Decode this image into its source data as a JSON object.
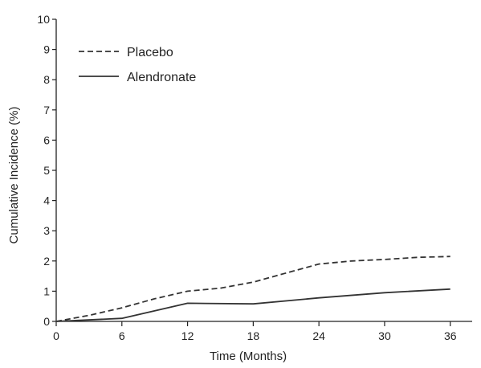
{
  "chart_data": {
    "type": "line",
    "title": "",
    "xlabel": "Time (Months)",
    "ylabel": "Cumulative Incidence (%)",
    "xlim": [
      0,
      38
    ],
    "ylim": [
      0,
      10
    ],
    "xticks": [
      0,
      6,
      12,
      18,
      24,
      30,
      36
    ],
    "yticks": [
      0,
      1,
      2,
      3,
      4,
      5,
      6,
      7,
      8,
      9,
      10
    ],
    "grid": false,
    "legend_position": "top-left",
    "series": [
      {
        "name": "Placebo",
        "style": "dashed",
        "color": "#333333",
        "x": [
          0,
          3,
          6,
          9,
          12,
          15,
          18,
          21,
          24,
          27,
          30,
          33,
          36
        ],
        "y": [
          0,
          0.2,
          0.45,
          0.75,
          1.0,
          1.1,
          1.3,
          1.6,
          1.9,
          2.0,
          2.05,
          2.12,
          2.15
        ]
      },
      {
        "name": "Alendronate",
        "style": "solid",
        "color": "#333333",
        "x": [
          0,
          6,
          12,
          18,
          24,
          30,
          36
        ],
        "y": [
          0,
          0.1,
          0.6,
          0.58,
          0.78,
          0.95,
          1.07
        ]
      }
    ]
  }
}
